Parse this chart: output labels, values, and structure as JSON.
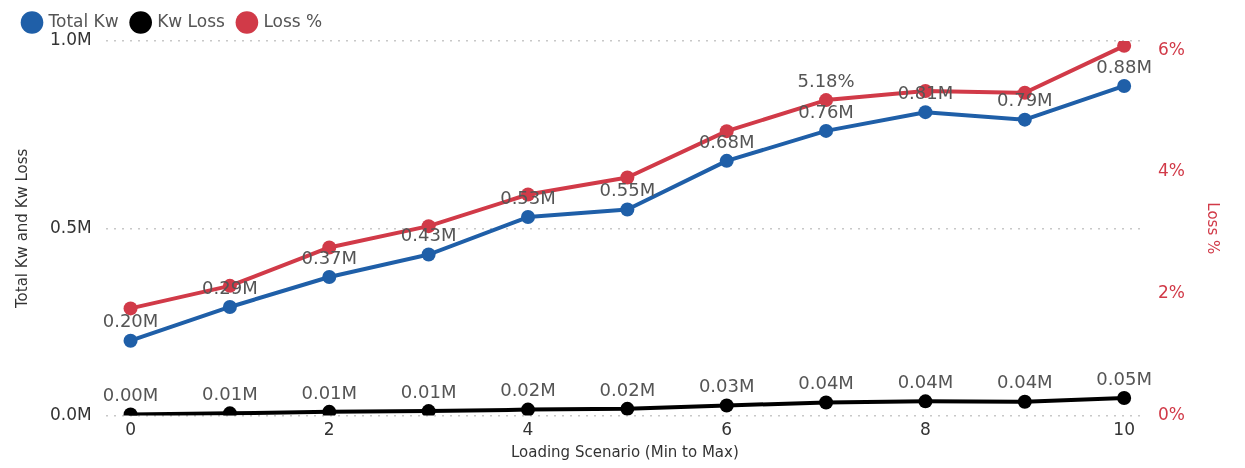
{
  "chart_data": {
    "type": "line",
    "xlabel": "Loading Scenario (Min to Max)",
    "ylabel": "Total Kw and Kw Loss",
    "y2label": "Loss %",
    "x": [
      0,
      1,
      2,
      3,
      4,
      5,
      6,
      7,
      8,
      9,
      10
    ],
    "xlim": [
      -0.25,
      10.2
    ],
    "xticks": [
      0,
      2,
      4,
      6,
      8,
      10
    ],
    "ylim": [
      0,
      1000000
    ],
    "yticks": [
      {
        "value": 0,
        "label": "0.0M"
      },
      {
        "value": 500000,
        "label": "0.5M"
      },
      {
        "value": 1000000,
        "label": "1.0M"
      }
    ],
    "y2lim": [
      0,
      6.15
    ],
    "y2ticks": [
      {
        "value": 0,
        "label": "0%"
      },
      {
        "value": 2,
        "label": "2%"
      },
      {
        "value": 4,
        "label": "4%"
      },
      {
        "value": 6,
        "label": "6%"
      }
    ],
    "series": [
      {
        "name": "Total Kw",
        "color": "#1f5fa8",
        "values": [
          200000,
          290000,
          370000,
          430000,
          530000,
          550000,
          680000,
          760000,
          810000,
          790000,
          880000
        ],
        "value_labels": [
          "0.20M",
          "0.29M",
          "0.37M",
          "0.43M",
          "0.53M",
          "0.55M",
          "0.68M",
          "0.76M",
          "0.81M",
          "0.79M",
          "0.88M"
        ]
      },
      {
        "name": "Kw Loss",
        "color": "#000000",
        "values": [
          3000,
          6000,
          10000,
          12000,
          16000,
          18000,
          27000,
          35000,
          38000,
          37000,
          47000
        ],
        "value_labels": [
          "0.00M",
          "0.01M",
          "0.01M",
          "0.01M",
          "0.02M",
          "0.02M",
          "0.03M",
          "0.04M",
          "0.04M",
          "0.04M",
          "0.05M"
        ]
      },
      {
        "name": "Loss %",
        "color": "#d13a48",
        "axis": "y2",
        "values": [
          1.76,
          2.13,
          2.76,
          3.11,
          3.63,
          3.91,
          4.67,
          5.18,
          5.33,
          5.3,
          6.07
        ],
        "value_labels": [
          null,
          null,
          null,
          null,
          null,
          null,
          null,
          "5.18%",
          null,
          null,
          null
        ]
      }
    ],
    "grid": "y",
    "legend": "top left",
    "marker": "circle",
    "line_style": "solid"
  }
}
